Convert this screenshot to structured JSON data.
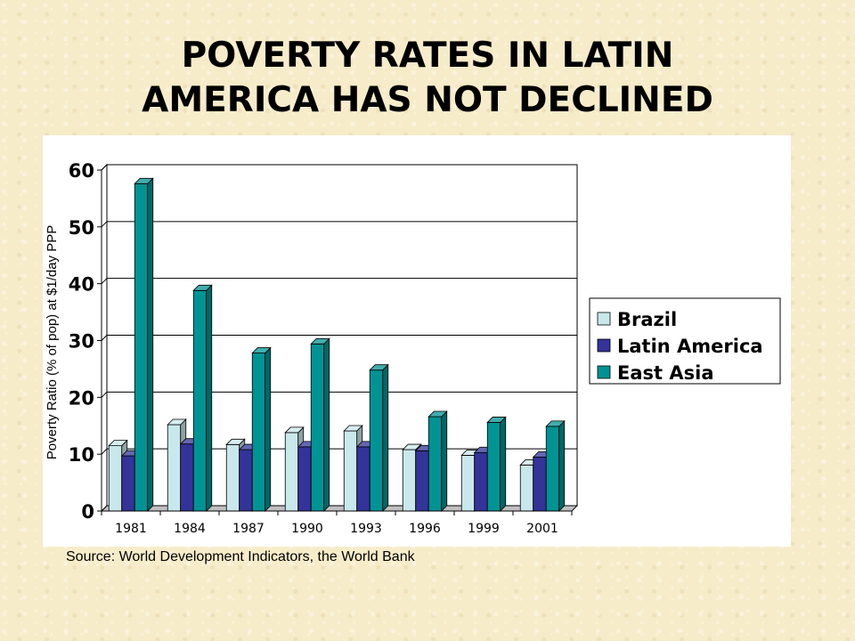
{
  "title_line1": "POVERTY RATES IN LATIN",
  "title_line2": "AMERICA HAS NOT DECLINED",
  "source": "Source: World Development Indicators, the World Bank",
  "chart_data": {
    "type": "bar",
    "categories": [
      "1981",
      "1984",
      "1987",
      "1990",
      "1993",
      "1996",
      "1999",
      "2001"
    ],
    "series": [
      {
        "name": "Brazil",
        "color": "#c9e8ec",
        "values": [
          11.5,
          15.2,
          11.7,
          13.8,
          14.1,
          10.8,
          9.8,
          8.1
        ]
      },
      {
        "name": "Latin America",
        "color": "#333399",
        "values": [
          9.7,
          11.8,
          10.8,
          11.3,
          11.3,
          10.6,
          10.3,
          9.5
        ]
      },
      {
        "name": "East Asia",
        "color": "#009393",
        "values": [
          57.6,
          38.8,
          27.8,
          29.4,
          24.8,
          16.6,
          15.6,
          14.9
        ]
      }
    ],
    "yticks": [
      0,
      10,
      20,
      30,
      40,
      50,
      60
    ],
    "ylim": [
      0,
      60
    ],
    "ylabel": "Poverty Ratio (% of pop) at $1/day PPP",
    "xlabel": "",
    "grid": true,
    "legend_position": "right"
  }
}
